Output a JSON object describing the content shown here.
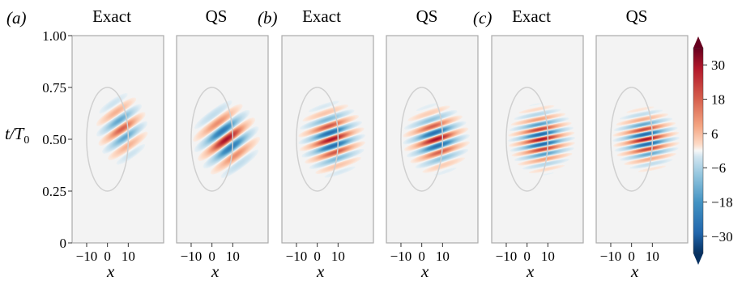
{
  "figure": {
    "groups": [
      {
        "label": "(a)",
        "panels": [
          {
            "title": "Exact"
          },
          {
            "title": "QS"
          }
        ]
      },
      {
        "label": "(b)",
        "panels": [
          {
            "title": "Exact"
          },
          {
            "title": "QS"
          }
        ]
      },
      {
        "label": "(c)",
        "panels": [
          {
            "title": "Exact"
          },
          {
            "title": "QS"
          }
        ]
      }
    ],
    "ylabel_t": "t",
    "ylabel_rest": "/T",
    "ylabel_sub": "0",
    "xlabel": "x"
  },
  "chart_data": {
    "type": "heatmap",
    "panels": 6,
    "x_ticks": [
      -10,
      0,
      10
    ],
    "x_tick_labels": [
      "−10",
      "0",
      "10"
    ],
    "y_ticks": [
      0,
      0.25,
      0.5,
      0.75,
      1.0
    ],
    "y_tick_labels": [
      "0",
      "0.25",
      "0.50",
      "0.75",
      "1.00"
    ],
    "xlim": [
      -17,
      27
    ],
    "ylim": [
      0,
      1
    ],
    "colorbar": {
      "ticks": [
        30,
        18,
        6,
        -6,
        -18,
        -30
      ],
      "tick_labels": [
        "30",
        "18",
        "6",
        "−6",
        "−18",
        "−30"
      ],
      "range": [
        -36,
        36
      ],
      "colormap": "RdBu_r",
      "extend": "both"
    },
    "ellipse": {
      "x_center": 0,
      "x_half_width": 10,
      "t_center": 0.5,
      "t_half_height": 0.25,
      "color": "#d0d0d0"
    },
    "background_color": "#f3f3f3",
    "wavepackets": [
      {
        "panel": "a-Exact",
        "x_center": 7,
        "t_center": 0.55,
        "x_sigma": 5,
        "t_sigma": 0.07,
        "k": 0.4,
        "omega": 60,
        "amplitude": 18
      },
      {
        "panel": "a-QS",
        "x_center": 7,
        "t_center": 0.5,
        "x_sigma": 6,
        "t_sigma": 0.07,
        "k": 0.4,
        "omega": 55,
        "amplitude": 30
      },
      {
        "panel": "b-Exact",
        "x_center": 7,
        "t_center": 0.5,
        "x_sigma": 6,
        "t_sigma": 0.07,
        "k": 0.3,
        "omega": 90,
        "amplitude": 30
      },
      {
        "panel": "b-QS",
        "x_center": 7,
        "t_center": 0.5,
        "x_sigma": 6,
        "t_sigma": 0.065,
        "k": 0.3,
        "omega": 90,
        "amplitude": 30
      },
      {
        "panel": "c-Exact",
        "x_center": 7,
        "t_center": 0.5,
        "x_sigma": 6,
        "t_sigma": 0.065,
        "k": 0.25,
        "omega": 125,
        "amplitude": 30
      },
      {
        "panel": "c-QS",
        "x_center": 7,
        "t_center": 0.5,
        "x_sigma": 6,
        "t_sigma": 0.06,
        "k": 0.25,
        "omega": 125,
        "amplitude": 30
      }
    ]
  }
}
